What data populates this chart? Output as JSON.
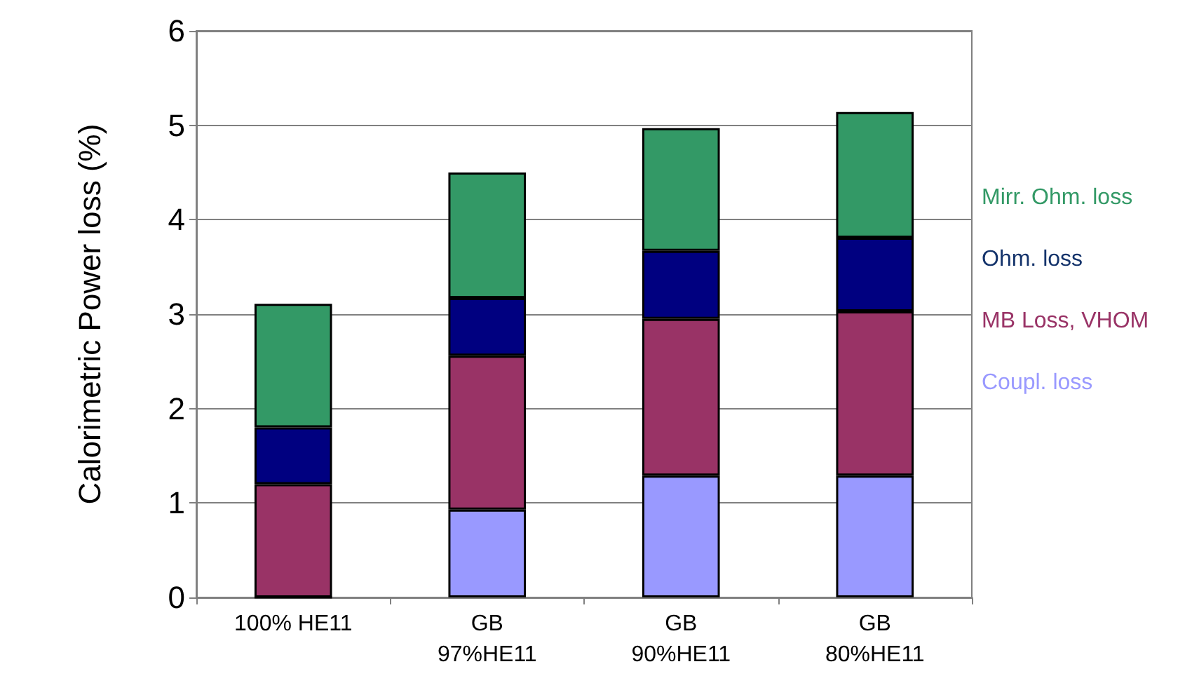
{
  "chart_data": {
    "type": "bar",
    "stacked": true,
    "ylabel": "Calorimetric Power loss (%)",
    "categories": [
      "100% HE11",
      "GB\n97%HE11",
      "GB\n90%HE11",
      "GB\n80%HE11"
    ],
    "series": [
      {
        "name": "Coupl. loss",
        "color": "#9999ff",
        "values": [
          0,
          0.93,
          1.29,
          1.29
        ]
      },
      {
        "name": "MB Loss, VHOM",
        "color": "#993366",
        "values": [
          1.2,
          1.63,
          1.66,
          1.74
        ]
      },
      {
        "name": "Ohm. loss",
        "color": "#000080",
        "values": [
          0.6,
          0.61,
          0.72,
          0.78
        ]
      },
      {
        "name": "Mirr. Ohm. loss",
        "color": "#339966",
        "values": [
          1.31,
          1.33,
          1.3,
          1.33
        ]
      }
    ],
    "ylim": [
      0,
      6
    ],
    "yticks": [
      0,
      1,
      2,
      3,
      4,
      5,
      6
    ],
    "grid": "y",
    "legend": "right"
  }
}
